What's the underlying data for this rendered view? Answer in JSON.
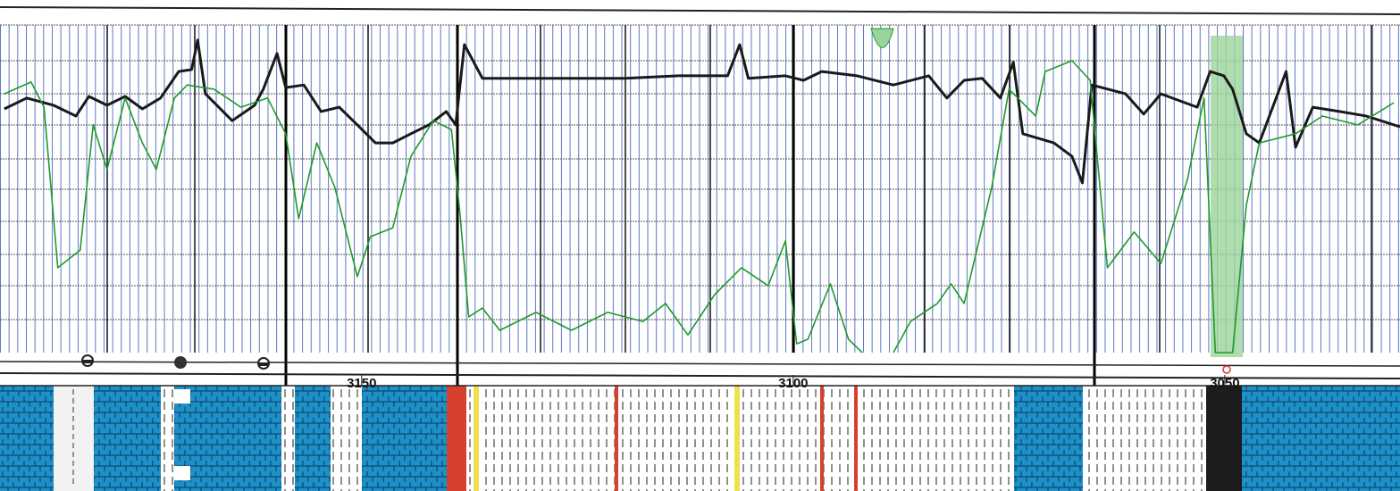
{
  "chart_data": {
    "type": "line",
    "xlim": [
      3191.9,
      3029.7
    ],
    "ylim": [
      0,
      100
    ],
    "xticks": [
      3150,
      3100,
      3050
    ],
    "series": [
      {
        "color": "#1a1a1a",
        "x": [
          3191.4,
          3188.8,
          3185.7,
          3183.1,
          3181.6,
          3179.5,
          3177.4,
          3175.4,
          3173.3,
          3171.2,
          3169.7,
          3169.0,
          3168.1,
          3165.0,
          3162.4,
          3161.4,
          3159.8,
          3158.8,
          3156.7,
          3154.7,
          3152.6,
          3150.5,
          3148.4,
          3146.4,
          3144.3,
          3142.2,
          3140.2,
          3139.1,
          3138.1,
          3136.0,
          3129.8,
          3119.5,
          3113.3,
          3109.1,
          3107.6,
          3106.2,
          3105.2,
          3100.9,
          3098.8,
          3096.7,
          3092.6,
          3088.4,
          3084.3,
          3082.2,
          3080.2,
          3078.1,
          3076.0,
          3074.5,
          3073.4,
          3069.8,
          3067.7,
          3066.5,
          3065.4,
          3061.5,
          3059.4,
          3057.4,
          3053.2,
          3051.7,
          3050.1,
          3049.1,
          3047.5,
          3046.0,
          3042.9,
          3041.8,
          3039.8,
          3036.7,
          3033.6,
          3029.7
        ],
        "values": [
          74.4,
          77.7,
          75.5,
          72.2,
          78.2,
          75.5,
          78.2,
          74.4,
          77.7,
          85.8,
          86.4,
          95.4,
          79.0,
          70.8,
          75.5,
          80.4,
          91.3,
          80.9,
          81.7,
          73.6,
          74.9,
          69.5,
          64.0,
          64.0,
          66.8,
          69.5,
          73.6,
          69.5,
          94.0,
          83.7,
          83.7,
          83.7,
          84.5,
          84.5,
          84.5,
          94.0,
          83.7,
          84.5,
          83.1,
          85.8,
          84.5,
          81.7,
          84.5,
          77.7,
          83.1,
          83.7,
          77.7,
          88.6,
          66.8,
          64.0,
          59.9,
          51.8,
          81.7,
          79.0,
          72.8,
          79.0,
          74.9,
          85.8,
          84.5,
          80.4,
          66.8,
          64.0,
          85.8,
          62.7,
          74.9,
          73.6,
          72.2,
          68.9
        ]
      },
      {
        "color": "#1f9a2a",
        "x": [
          3191.4,
          3188.3,
          3186.8,
          3185.2,
          3182.6,
          3181.1,
          3179.5,
          3177.4,
          3175.4,
          3173.8,
          3171.7,
          3170.2,
          3167.1,
          3164.0,
          3160.9,
          3158.8,
          3157.3,
          3155.2,
          3153.1,
          3150.5,
          3149.0,
          3146.4,
          3144.3,
          3141.7,
          3139.6,
          3138.6,
          3137.6,
          3136.0,
          3134.0,
          3129.8,
          3125.7,
          3121.5,
          3117.4,
          3114.8,
          3112.2,
          3109.1,
          3106.0,
          3102.9,
          3100.9,
          3099.6,
          3098.3,
          3095.7,
          3093.6,
          3092.0,
          3090.5,
          3088.4,
          3086.4,
          3083.3,
          3081.7,
          3080.2,
          3077.0,
          3075.0,
          3071.9,
          3070.8,
          3067.7,
          3065.6,
          3063.6,
          3060.5,
          3057.4,
          3054.3,
          3052.4,
          3051.1,
          3049.1,
          3047.5,
          3046.0,
          3041.8,
          3038.7,
          3034.6,
          3030.4
        ],
        "values": [
          79.0,
          82.6,
          74.9,
          25.9,
          31.3,
          69.5,
          55.9,
          77.7,
          64.0,
          55.9,
          77.7,
          81.7,
          80.4,
          74.9,
          77.7,
          66.8,
          40.9,
          64.0,
          50.4,
          23.2,
          35.4,
          38.1,
          59.9,
          70.8,
          68.1,
          42.2,
          10.9,
          13.6,
          6.8,
          12.3,
          6.8,
          12.3,
          9.5,
          15.0,
          5.4,
          17.7,
          25.9,
          20.4,
          34.1,
          2.7,
          4.1,
          21.0,
          4.1,
          0,
          null,
          0,
          9.5,
          15.0,
          21.0,
          15.0,
          50.4,
          80.4,
          72.2,
          85.8,
          89.1,
          83.1,
          25.9,
          36.8,
          27.2,
          53.1,
          77.7,
          0,
          0,
          45.0,
          64.0,
          66.8,
          72.2,
          69.5,
          76.3
        ]
      }
    ]
  }
}
